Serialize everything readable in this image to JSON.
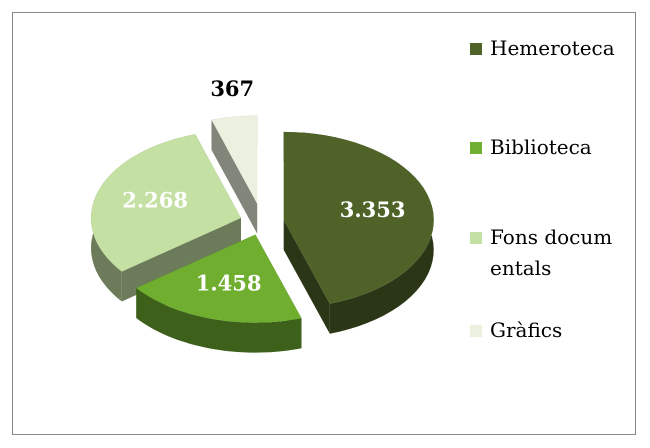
{
  "chart_data": {
    "type": "pie3d",
    "categories": [
      "Hemeroteca",
      "Biblioteca",
      "Fons documentals",
      "Gràfics"
    ],
    "values": [
      3353,
      1458,
      2268,
      367
    ],
    "value_labels": [
      "3.353",
      "1.458",
      "2.268",
      "367"
    ],
    "colors": [
      "#4f6228",
      "#6fae2f",
      "#c4e0a2",
      "#ebf1de"
    ],
    "legend": "right"
  }
}
